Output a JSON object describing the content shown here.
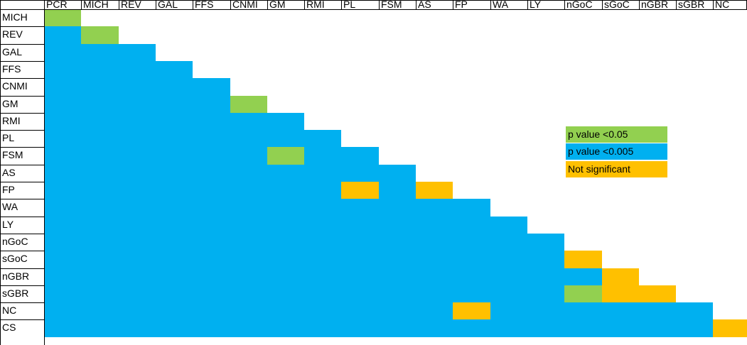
{
  "chart_data": {
    "type": "heatmap",
    "column_labels": [
      "PCR",
      "MICH",
      "REV",
      "GAL",
      "FFS",
      "CNMI",
      "GM",
      "RMI",
      "PL",
      "FSM",
      "AS",
      "FP",
      "WA",
      "LY",
      "nGoC",
      "sGoC",
      "nGBR",
      "sGBR",
      "NC"
    ],
    "row_labels": [
      "MICH",
      "REV",
      "GAL",
      "FFS",
      "CNMI",
      "GM",
      "RMI",
      "PL",
      "FSM",
      "AS",
      "FP",
      "WA",
      "LY",
      "nGoC",
      "sGoC",
      "nGBR",
      "sGBR",
      "NC",
      "CS"
    ],
    "categories": [
      {
        "key": "lt005",
        "label": "p value <0.05",
        "color": "#92d050"
      },
      {
        "key": "lt0005",
        "label": "p value <0.005",
        "color": "#00b0f0"
      },
      {
        "key": "ns",
        "label": "Not significant",
        "color": "#ffc000"
      }
    ],
    "default_category": "lt0005",
    "exceptions": [
      {
        "row": "MICH",
        "col": "PCR",
        "category": "lt005"
      },
      {
        "row": "REV",
        "col": "MICH",
        "category": "lt005"
      },
      {
        "row": "GM",
        "col": "CNMI",
        "category": "lt005"
      },
      {
        "row": "FSM",
        "col": "GM",
        "category": "lt005"
      },
      {
        "row": "FP",
        "col": "PL",
        "category": "ns"
      },
      {
        "row": "FP",
        "col": "AS",
        "category": "ns"
      },
      {
        "row": "sGoC",
        "col": "nGoC",
        "category": "ns"
      },
      {
        "row": "nGBR",
        "col": "sGoC",
        "category": "ns"
      },
      {
        "row": "sGBR",
        "col": "nGoC",
        "category": "lt005"
      },
      {
        "row": "sGBR",
        "col": "sGoC",
        "category": "ns"
      },
      {
        "row": "sGBR",
        "col": "nGBR",
        "category": "ns"
      },
      {
        "row": "NC",
        "col": "FP",
        "category": "ns"
      },
      {
        "row": "CS",
        "col": "NC",
        "category": "ns"
      }
    ],
    "grid": true,
    "legend_placement": "right"
  }
}
